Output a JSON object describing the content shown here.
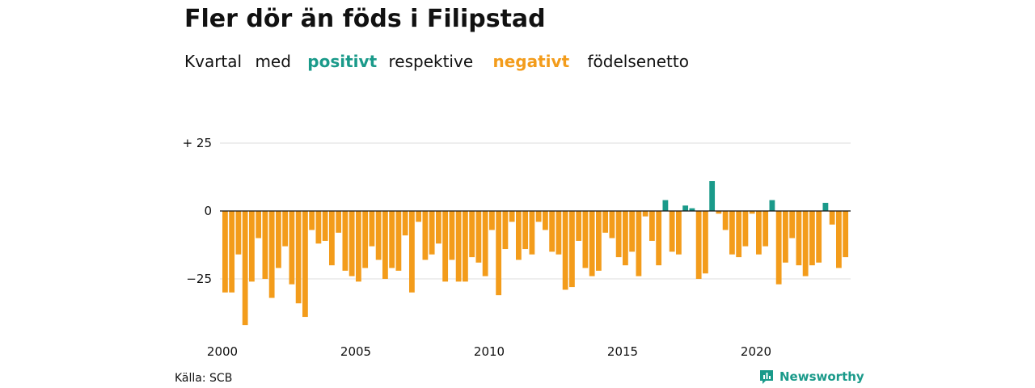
{
  "header": {
    "title": "Fler dör än föds i Filipstad",
    "subtitle_parts": {
      "w1": "Kvartal",
      "w2": "med",
      "positive": "positivt",
      "w3": "respektive",
      "negative": "negativt",
      "w4": "födelsenetto"
    }
  },
  "colors": {
    "positive": "#1a9a8a",
    "negative": "#f39c1b",
    "grid": "#dddddd",
    "zero_line": "#111111"
  },
  "footer": {
    "source": "Källa: SCB",
    "brand": "Newsworthy",
    "brand_icon": "newsworthy-logo-icon"
  },
  "chart_data": {
    "type": "bar",
    "title": "Fler dör än föds i Filipstad",
    "subtitle": "Kvartal med positivt respektive negativt födelsenetto",
    "xlabel": "",
    "ylabel": "",
    "x_start": "2000 Q1",
    "x_tick_labels": [
      "2000",
      "2005",
      "2010",
      "2015",
      "2020"
    ],
    "y_ticks": [
      25,
      0,
      -25
    ],
    "y_tick_labels": [
      "+ 25",
      "0",
      "−25"
    ],
    "ylim": [
      -43,
      27
    ],
    "grid": true,
    "legend": "none",
    "series": [
      {
        "values": [
          -30,
          -30,
          -16,
          -42,
          -26,
          -10,
          -25,
          -32,
          -21,
          -13,
          -27,
          -34,
          -39,
          -7,
          -12,
          -11,
          -20,
          -8,
          -22,
          -24,
          -26,
          -21,
          -13,
          -18,
          -25,
          -21,
          -22,
          -9,
          -30,
          -4,
          -18,
          -16,
          -12,
          -26,
          -18,
          -26,
          -26,
          -17,
          -19,
          -24,
          -7,
          -31,
          -14,
          -4,
          -18,
          -14,
          -16,
          -4,
          -7,
          -15,
          -16,
          -29,
          -28,
          -11,
          -21,
          -24,
          -22,
          -8,
          -10,
          -17,
          -20,
          -15,
          -24,
          -2,
          -11,
          -20,
          4,
          -15,
          -16,
          2,
          1,
          -25,
          -23,
          11,
          -1,
          -7,
          -16,
          -17,
          -13,
          -1,
          -16,
          -13,
          4,
          -27,
          -19,
          -10,
          -20,
          -24,
          -20,
          -19,
          3,
          -5,
          -21,
          -17
        ]
      }
    ]
  }
}
